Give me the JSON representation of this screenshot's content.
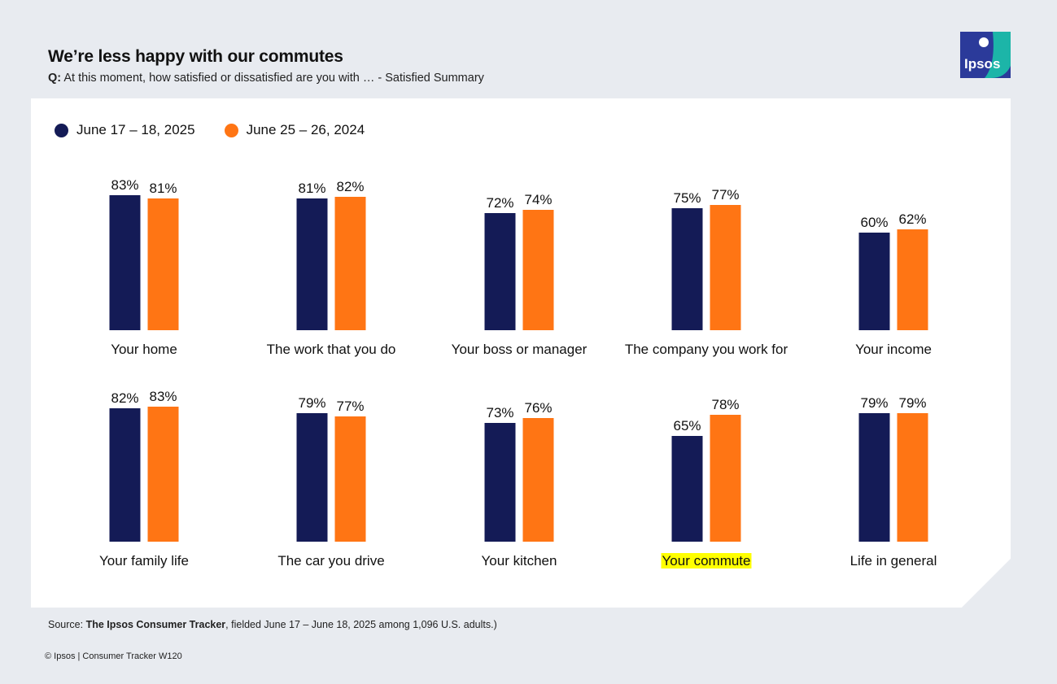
{
  "header": {
    "title": "We’re less happy with our commutes",
    "question_prefix": "Q:",
    "question": "At this moment, how satisfied or dissatisfied are you with … - Satisfied Summary"
  },
  "logo": {
    "text": "Ipsos"
  },
  "legend": [
    {
      "label": "June 17 – 18, 2025",
      "color": "#141b56"
    },
    {
      "label": "June 25 – 26, 2024",
      "color": "#ff7514"
    }
  ],
  "chart_data": {
    "type": "bar",
    "title": "We’re less happy with our commutes",
    "ylim": [
      0,
      100
    ],
    "highlight_category": "Your commute",
    "highlight_color": "#ffff00",
    "categories": [
      "Your home",
      "The work that you do",
      "Your boss or manager",
      "The company you work for",
      "Your income",
      "Your family life",
      "The car you drive",
      "Your kitchen",
      "Your commute",
      "Life in general"
    ],
    "series": [
      {
        "name": "June 17 – 18, 2025",
        "color": "#141b56",
        "values": [
          83,
          81,
          72,
          75,
          60,
          82,
          79,
          73,
          65,
          79
        ]
      },
      {
        "name": "June 25 – 26, 2024",
        "color": "#ff7514",
        "values": [
          81,
          82,
          74,
          77,
          62,
          83,
          77,
          76,
          78,
          79
        ]
      }
    ]
  },
  "footer": {
    "source_prefix": "Source:",
    "source_bold": "The Ipsos Consumer Tracker",
    "source_rest": ", fielded June 17 – June 18, 2025 among 1,096 U.S. adults.)",
    "copyright": "© Ipsos | Consumer Tracker W120"
  }
}
